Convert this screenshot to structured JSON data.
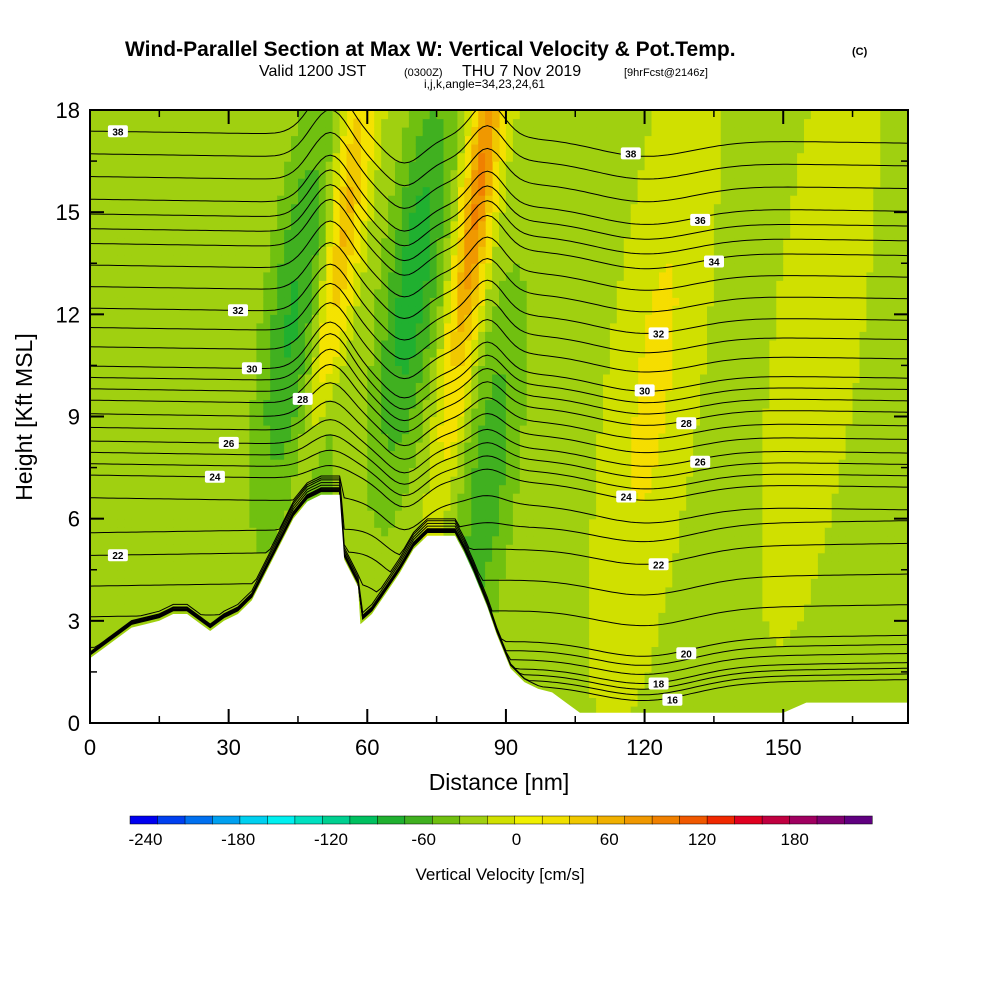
{
  "chart_data": {
    "type": "heatmap",
    "title": "Wind-Parallel Section at Max W: Vertical Velocity & Pot.Temp.",
    "title_mark": "(C)",
    "subtitle": {
      "valid": "Valid 1200 JST",
      "utc": "(0300Z)",
      "date": "THU 7 Nov 2019",
      "run": "[9hrFcst@2146z]"
    },
    "subtitle2": "i,j,k,angle=34,23,24,61",
    "xlabel": "Distance [nm]",
    "ylabel": "Height [Kft MSL]",
    "xlim": [
      0,
      177
    ],
    "ylim": [
      0,
      18
    ],
    "xticks": [
      "0",
      "30",
      "60",
      "90",
      "120",
      "150"
    ],
    "xtick_values": [
      0,
      30,
      60,
      90,
      120,
      150
    ],
    "yticks": [
      "0",
      "3",
      "6",
      "9",
      "12",
      "15",
      "18"
    ],
    "ytick_values": [
      0,
      3,
      6,
      9,
      12,
      15,
      18
    ],
    "colorbar": {
      "label": "Vertical Velocity [cm/s]",
      "min": -250,
      "max": 230,
      "step": 20,
      "ticks": [
        "-240",
        "-180",
        "-120",
        "-60",
        "0",
        "60",
        "120",
        "180"
      ],
      "tick_values": [
        -240,
        -180,
        -120,
        -60,
        0,
        60,
        120,
        180
      ],
      "colors": [
        "#0000f0",
        "#0040f0",
        "#0070f0",
        "#00a0f0",
        "#00d0f0",
        "#00f0f0",
        "#00e0c0",
        "#00d090",
        "#00c060",
        "#20b030",
        "#40b020",
        "#70c010",
        "#a0d010",
        "#d0e000",
        "#f0f000",
        "#f0e000",
        "#f0c800",
        "#f0b000",
        "#f09800",
        "#f08000",
        "#f05800",
        "#f02800",
        "#e00020",
        "#c00040",
        "#a00060",
        "#800070",
        "#600080"
      ]
    },
    "terrain_kft": [
      [
        0,
        1.9
      ],
      [
        3,
        2.2
      ],
      [
        6,
        2.5
      ],
      [
        9,
        2.8
      ],
      [
        12,
        2.9
      ],
      [
        15,
        3.0
      ],
      [
        18,
        3.2
      ],
      [
        21,
        3.2
      ],
      [
        24,
        2.9
      ],
      [
        26,
        2.7
      ],
      [
        29,
        3.0
      ],
      [
        32,
        3.2
      ],
      [
        35,
        3.6
      ],
      [
        38,
        4.4
      ],
      [
        41,
        5.2
      ],
      [
        44,
        6.0
      ],
      [
        47,
        6.5
      ],
      [
        50,
        6.7
      ],
      [
        54,
        6.7
      ],
      [
        55,
        4.8
      ],
      [
        58,
        4.0
      ],
      [
        58.5,
        2.9
      ],
      [
        61,
        3.2
      ],
      [
        64,
        3.8
      ],
      [
        67,
        4.4
      ],
      [
        70,
        5.1
      ],
      [
        73,
        5.5
      ],
      [
        76,
        5.5
      ],
      [
        79,
        5.5
      ],
      [
        81,
        5.0
      ],
      [
        83,
        4.4
      ],
      [
        86,
        3.4
      ],
      [
        88,
        2.6
      ],
      [
        91,
        1.6
      ],
      [
        94,
        1.2
      ],
      [
        97,
        1.0
      ],
      [
        100,
        0.9
      ],
      [
        103,
        0.6
      ],
      [
        106,
        0.3
      ],
      [
        120,
        0.3
      ],
      [
        150,
        0.3
      ],
      [
        155,
        0.6
      ],
      [
        177,
        0.6
      ]
    ],
    "w_features": [
      {
        "x": 54,
        "z": 13,
        "w": 140
      },
      {
        "x": 51,
        "z": 9,
        "w": -90
      },
      {
        "x": 44,
        "z": 12,
        "w": -60
      },
      {
        "x": 70,
        "z": 13,
        "w": -70
      },
      {
        "x": 84,
        "z": 15.5,
        "w": 130
      },
      {
        "x": 86,
        "z": 7,
        "w": -50
      },
      {
        "x": 122,
        "z": 10,
        "w": 30
      },
      {
        "x": 158,
        "z": 12,
        "w": 20
      }
    ],
    "theta_levels": [
      {
        "value": 16,
        "label": "16",
        "base": 1.1,
        "label_x": 123
      },
      {
        "value": 18,
        "label": "18",
        "base": 1.6,
        "label_x": 120
      },
      {
        "value": 20,
        "label": "20",
        "base": 2.4,
        "label_x": 126
      },
      {
        "value": 22,
        "label": "22",
        "base": 5.1,
        "label_x": 3
      },
      {
        "value": 22,
        "label": "22",
        "base": 5.1,
        "label_x": 120
      },
      {
        "value": 24,
        "label": "24",
        "base": 7.1,
        "label_x": 24
      },
      {
        "value": 24,
        "label": "24",
        "base": 7.1,
        "label_x": 113
      },
      {
        "value": 26,
        "label": "26",
        "base": 8.1,
        "label_x": 27
      },
      {
        "value": 26,
        "label": "26",
        "base": 8.1,
        "label_x": 129
      },
      {
        "value": 28,
        "label": "28",
        "base": 9.3,
        "label_x": 43
      },
      {
        "value": 28,
        "label": "28",
        "base": 9.3,
        "label_x": 126
      },
      {
        "value": 30,
        "label": "30",
        "base": 10.3,
        "label_x": 32
      },
      {
        "value": 30,
        "label": "30",
        "base": 10.3,
        "label_x": 117
      },
      {
        "value": 32,
        "label": "32",
        "base": 12.0,
        "label_x": 29
      },
      {
        "value": 32,
        "label": "32",
        "base": 12.0,
        "label_x": 120
      },
      {
        "value": 34,
        "label": "34",
        "base": 13.9,
        "label_x": 132
      },
      {
        "value": 36,
        "label": "36",
        "base": 15.2,
        "label_x": 129
      },
      {
        "value": 38,
        "label": "38",
        "base": 17.2,
        "label_x": 3
      },
      {
        "value": 38,
        "label": "38",
        "base": 17.2,
        "label_x": 114
      }
    ],
    "grid": false,
    "legend": "colorbar-bottom"
  }
}
